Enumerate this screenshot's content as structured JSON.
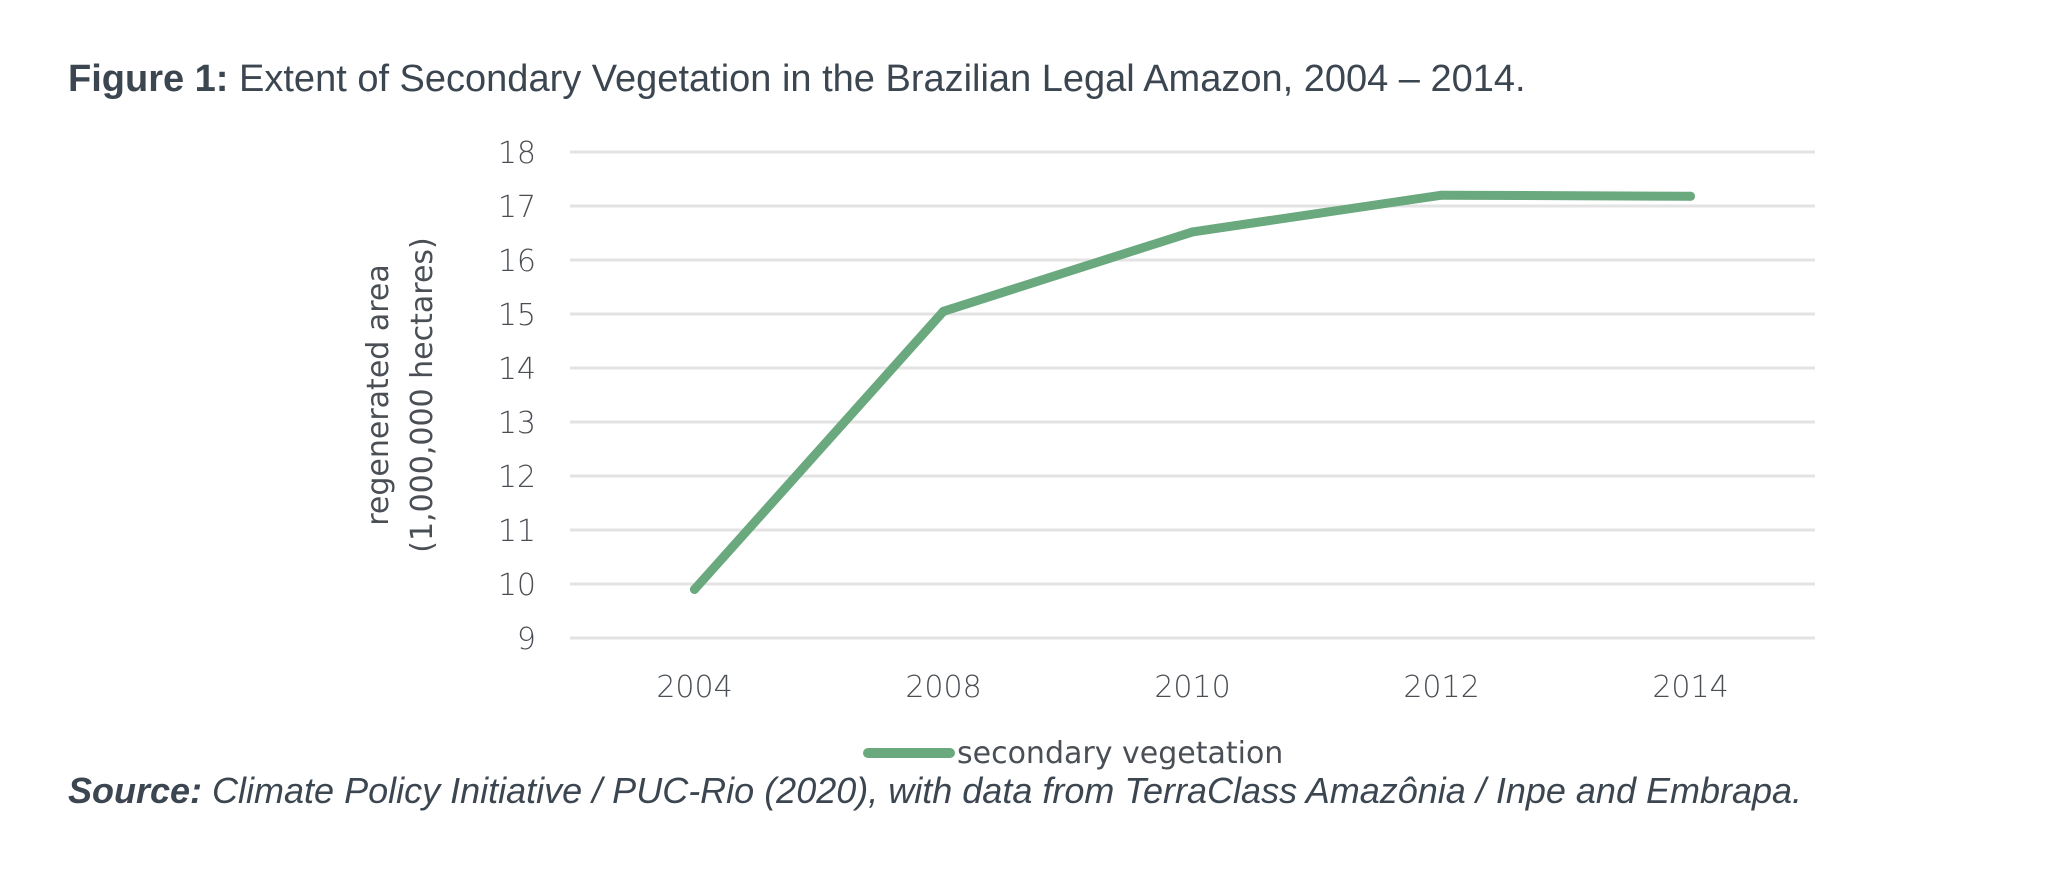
{
  "caption": {
    "label": "Figure 1:",
    "text": " Extent of Secondary Vegetation in the Brazilian Legal Amazon, 2004 – 2014."
  },
  "source": {
    "label": "Source:",
    "text": " Climate Policy Initiative / PUC-Rio (2020), with data from TerraClass Amazônia / Inpe and Embrapa."
  },
  "chart_data": {
    "type": "line",
    "categories": [
      "2004",
      "2008",
      "2010",
      "2012",
      "2014"
    ],
    "series": [
      {
        "name": "secondary vegetation",
        "values": [
          9.9,
          15.05,
          16.52,
          17.2,
          17.18
        ],
        "color": "#6aa87e"
      }
    ],
    "title": "",
    "xlabel": "",
    "ylabel_lines": [
      "regenerated area",
      "(1,000,000 hectares)"
    ],
    "ylim": [
      9,
      18
    ],
    "yticks": [
      9,
      10,
      11,
      12,
      13,
      14,
      15,
      16,
      17,
      18
    ],
    "grid": true,
    "legend": "bottom",
    "gridline_color": "#e3e3e3"
  }
}
